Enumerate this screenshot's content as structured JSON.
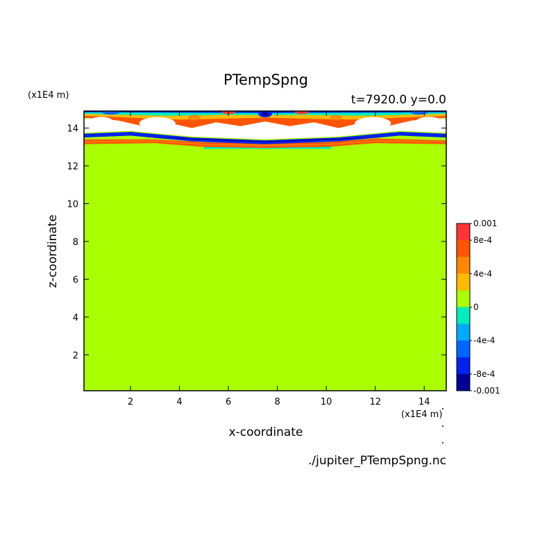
{
  "chart_data": {
    "type": "heatmap",
    "title": "PTempSpng",
    "subtitle": "t=7920.0 y=0.0",
    "xlabel": "x-coordinate",
    "ylabel": "z-coordinate",
    "x_units": "(x1E4 m)",
    "y_units": "(x1E4 m)",
    "xlim": [
      0.1,
      14.9
    ],
    "ylim": [
      0.1,
      14.9
    ],
    "x_ticks": [
      "2",
      "4",
      "6",
      "8",
      "10",
      "12",
      "14"
    ],
    "y_ticks": [
      "2",
      "4",
      "6",
      "8",
      "10",
      "12",
      "14"
    ],
    "source_file": "./jupiter_PTempSpng.nc",
    "colorbar": {
      "labels": [
        "0.001",
        "8e-4",
        "4e-4",
        "0",
        "-4e-4",
        "-8e-4",
        "-0.001"
      ],
      "levels": [
        0.001,
        0.0008,
        0.0004,
        0,
        -0.0004,
        -0.0008,
        -0.001
      ],
      "colors": [
        "#ff3333",
        "#ff5500",
        "#ff8800",
        "#ffbb00",
        "#aaff00",
        "#00eebb",
        "#00aaff",
        "#0066ff",
        "#0022ee",
        "#000099"
      ]
    },
    "background_value": 0,
    "background_color": "#aaff00",
    "anomaly_region": {
      "description_value_range": [
        -0.001,
        0.001
      ],
      "z_range": [
        12.7,
        14.9
      ],
      "band_levels_z": [
        14.7,
        14.2,
        13.6,
        13.3,
        13.1
      ]
    },
    "slab": {
      "x_range": [
        5.0,
        10.2
      ],
      "z_range": [
        12.9,
        13.3
      ],
      "value": -0.0002
    }
  }
}
